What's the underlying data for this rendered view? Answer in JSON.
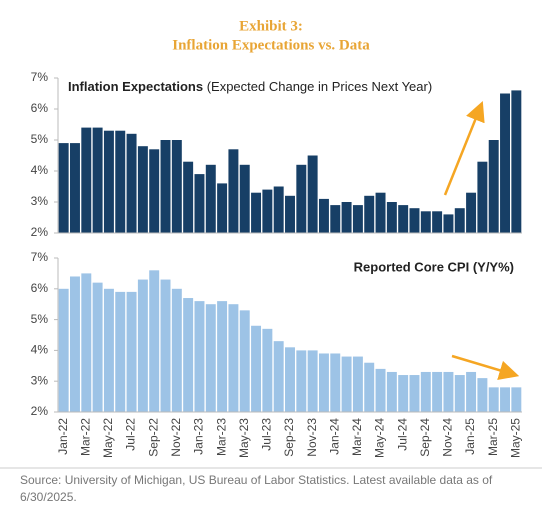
{
  "header": {
    "exhibit": "Exhibit 3:",
    "title": "Inflation Expectations vs. Data"
  },
  "chart_data": [
    {
      "type": "bar",
      "title": "Inflation Expectations",
      "subtitle": "(Expected Change in Prices Next Year)",
      "color": "#173f66",
      "values": [
        4.9,
        4.9,
        5.4,
        5.4,
        5.3,
        5.3,
        5.2,
        4.8,
        4.7,
        5.0,
        5.0,
        4.3,
        3.9,
        4.2,
        3.6,
        4.7,
        4.2,
        3.3,
        3.4,
        3.5,
        3.2,
        4.2,
        4.5,
        3.1,
        2.9,
        3.0,
        2.9,
        3.2,
        3.3,
        3.0,
        2.9,
        2.8,
        2.7,
        2.7,
        2.6,
        2.8,
        3.3,
        4.3,
        5.0,
        6.5,
        6.6
      ],
      "ylim": [
        2,
        7
      ],
      "yticks": [
        {
          "value": 2,
          "label": "2%"
        },
        {
          "value": 3,
          "label": "3%"
        },
        {
          "value": 4,
          "label": "4%"
        },
        {
          "value": 5,
          "label": "5%"
        },
        {
          "value": 6,
          "label": "6%"
        },
        {
          "value": 7,
          "label": "7%"
        }
      ]
    },
    {
      "type": "bar",
      "title": "Reported Core CPI (Y/Y%)",
      "color": "#9dc3e6",
      "categories": [
        "Jan-22",
        null,
        "Mar-22",
        null,
        "May-22",
        null,
        "Jul-22",
        null,
        "Sep-22",
        null,
        "Nov-22",
        null,
        "Jan-23",
        null,
        "Mar-23",
        null,
        "May-23",
        null,
        "Jul-23",
        null,
        "Sep-23",
        null,
        "Nov-23",
        null,
        "Jan-24",
        null,
        "Mar-24",
        null,
        "May-24",
        null,
        "Jul-24",
        null,
        "Sep-24",
        null,
        "Nov-24",
        null,
        "Jan-25",
        null,
        "Mar-25",
        null,
        "May-25"
      ],
      "values": [
        6.0,
        6.4,
        6.5,
        6.2,
        6.0,
        5.9,
        5.9,
        6.3,
        6.6,
        6.3,
        6.0,
        5.7,
        5.6,
        5.5,
        5.6,
        5.5,
        5.3,
        4.8,
        4.7,
        4.3,
        4.1,
        4.0,
        4.0,
        3.9,
        3.9,
        3.8,
        3.8,
        3.6,
        3.4,
        3.3,
        3.2,
        3.2,
        3.3,
        3.3,
        3.3,
        3.2,
        3.3,
        3.1,
        2.8,
        2.8,
        2.8
      ],
      "ylim": [
        2,
        7
      ],
      "yticks": [
        {
          "value": 2,
          "label": "2%"
        },
        {
          "value": 3,
          "label": "3%"
        },
        {
          "value": 4,
          "label": "4%"
        },
        {
          "value": 5,
          "label": "5%"
        },
        {
          "value": 6,
          "label": "6%"
        },
        {
          "value": 7,
          "label": "7%"
        }
      ]
    }
  ],
  "source": "Source: University of Michigan, US Bureau of Labor Statistics. Latest available data as of 6/30/2025."
}
